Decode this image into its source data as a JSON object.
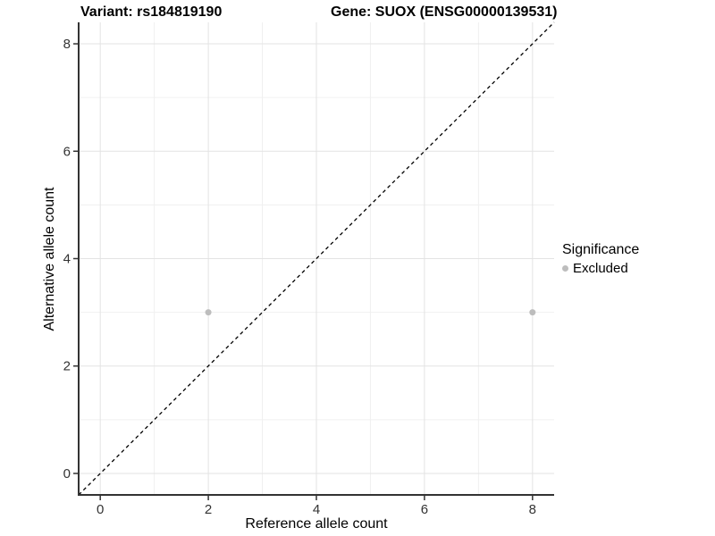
{
  "chart_data": {
    "type": "scatter",
    "title_variant": "Variant: rs184819190",
    "title_gene": "Gene: SUOX (ENSG00000139531)",
    "xlabel": "Reference allele count",
    "ylabel": "Alternative allele count",
    "xlim": [
      -0.4,
      8.4
    ],
    "ylim": [
      -0.4,
      8.4
    ],
    "x_ticks": [
      0,
      2,
      4,
      6,
      8
    ],
    "y_ticks": [
      0,
      2,
      4,
      6,
      8
    ],
    "x_minor_ticks": [
      1,
      3,
      5,
      7
    ],
    "y_minor_ticks": [
      1,
      3,
      5,
      7
    ],
    "grid": "on",
    "identity_line": {
      "style": "dashed",
      "from": -0.4,
      "to": 8.4,
      "slope": 1,
      "intercept": 0
    },
    "series": [
      {
        "name": "Excluded",
        "color": "#bdbdbd",
        "point_radius": 3.5,
        "points": [
          [
            2,
            3
          ],
          [
            8,
            3
          ]
        ]
      }
    ],
    "colors": {
      "background": "#ffffff",
      "grid_major": "#e3e3e3",
      "grid_minor": "#f0f0f0",
      "axis_line": "#333333",
      "tick_text": "#333333",
      "reference_line": "#000000"
    }
  },
  "legend": {
    "title": "Significance",
    "position": "right",
    "items": [
      {
        "label": "Excluded",
        "color": "#bdbdbd"
      }
    ]
  }
}
